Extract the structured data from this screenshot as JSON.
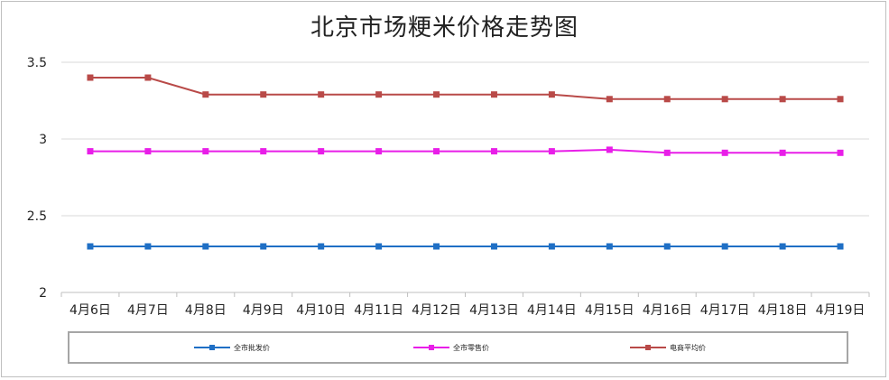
{
  "chart_data": {
    "type": "line",
    "title": "北京市场粳米价格走势图",
    "categories": [
      "4月6日",
      "4月7日",
      "4月8日",
      "4月9日",
      "4月10日",
      "4月11日",
      "4月12日",
      "4月13日",
      "4月14日",
      "4月15日",
      "4月16日",
      "4月17日",
      "4月18日",
      "4月19日"
    ],
    "yticks": [
      "3.5",
      "3",
      "2.5",
      "2"
    ],
    "ylim": [
      2,
      3.5
    ],
    "grid": true,
    "legend_position": "bottom",
    "series": [
      {
        "name": "全市批发价",
        "color": "#1f6fc5",
        "values": [
          2.3,
          2.3,
          2.3,
          2.3,
          2.3,
          2.3,
          2.3,
          2.3,
          2.3,
          2.3,
          2.3,
          2.3,
          2.3,
          2.3
        ]
      },
      {
        "name": "全市零售价",
        "color": "#e81ee8",
        "values": [
          2.92,
          2.92,
          2.92,
          2.92,
          2.92,
          2.92,
          2.92,
          2.92,
          2.92,
          2.93,
          2.91,
          2.91,
          2.91,
          2.91
        ]
      },
      {
        "name": "电商平均价",
        "color": "#b94a48",
        "values": [
          3.4,
          3.4,
          3.29,
          3.29,
          3.29,
          3.29,
          3.29,
          3.29,
          3.29,
          3.26,
          3.26,
          3.26,
          3.26,
          3.26
        ]
      }
    ]
  }
}
